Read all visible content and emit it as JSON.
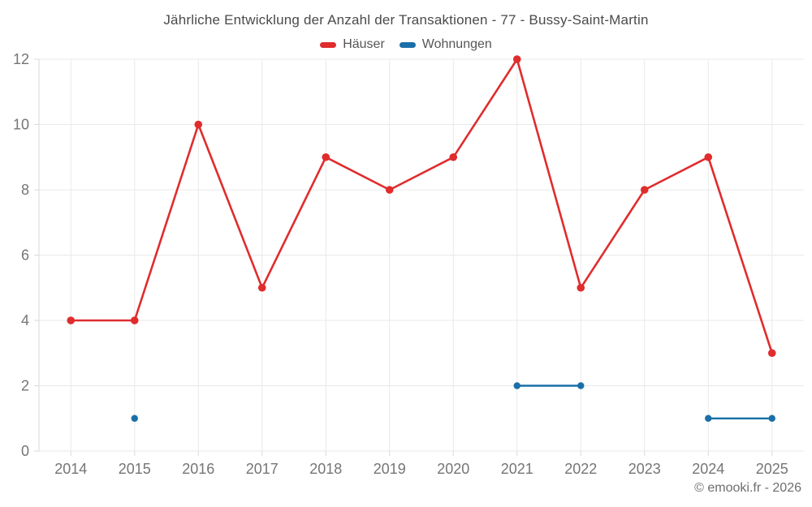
{
  "title": "Jährliche Entwicklung der Anzahl der Transaktionen - 77 - Bussy-Saint-Martin",
  "footer": "© emooki.fr - 2026",
  "colors": {
    "grid": "#e9e9e9",
    "axis": "#d9d9d9",
    "tick_label": "#757575",
    "title_text": "#4a4a4a",
    "legend_text": "#565656",
    "background": "#ffffff"
  },
  "chart_data": {
    "type": "line",
    "title": "Jährliche Entwicklung der Anzahl der Transaktionen - 77 - Bussy-Saint-Martin",
    "categories": [
      "2014",
      "2015",
      "2016",
      "2017",
      "2018",
      "2019",
      "2020",
      "2021",
      "2022",
      "2023",
      "2024",
      "2025"
    ],
    "series": [
      {
        "name": "Häuser",
        "color": "#e02c2d",
        "values": [
          4,
          4,
          10,
          5,
          9,
          8,
          9,
          12,
          5,
          8,
          9,
          3
        ]
      },
      {
        "name": "Wohnungen",
        "color": "#1a6fa8",
        "values": [
          null,
          1,
          null,
          null,
          null,
          null,
          null,
          2,
          2,
          null,
          1,
          1
        ]
      }
    ],
    "xlabel": "",
    "ylabel": "",
    "ylim": [
      0,
      12
    ],
    "yticks": [
      0,
      2,
      4,
      6,
      8,
      10,
      12
    ],
    "grid": true,
    "legend_position": "top"
  }
}
